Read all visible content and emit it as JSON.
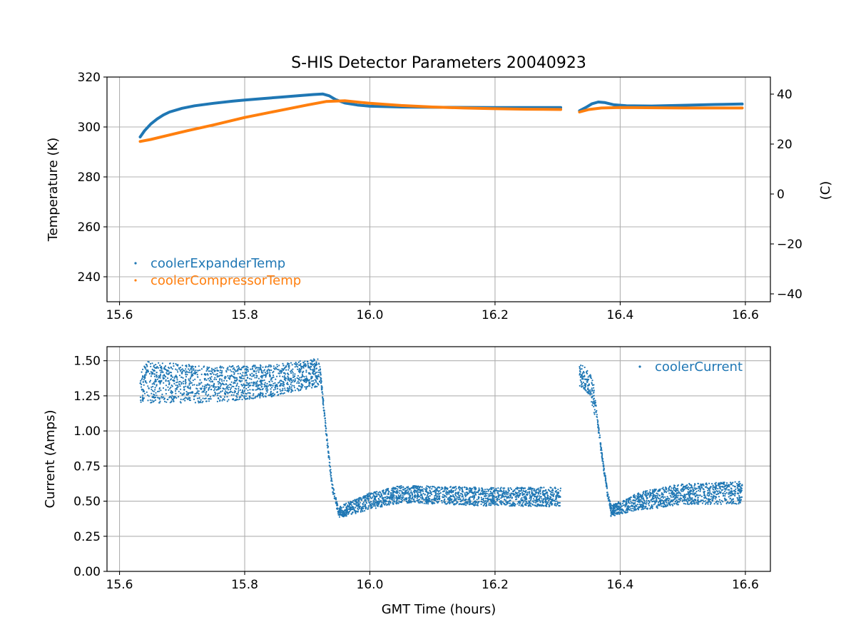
{
  "chart_data": [
    {
      "type": "scatter",
      "title": "S-HIS Detector Parameters 20040923",
      "xlabel": "",
      "ylabel": "Temperature (K)",
      "ylabel_right": "(C)",
      "xlim": [
        15.58,
        16.64
      ],
      "ylim": [
        230,
        320
      ],
      "ylim_right": [
        -43.15,
        46.85
      ],
      "x_ticks": [
        "15.6",
        "15.8",
        "16.0",
        "16.2",
        "16.4",
        "16.6"
      ],
      "y_ticks": [
        "240",
        "260",
        "280",
        "300",
        "320"
      ],
      "y_ticks_right": [
        "−40",
        "−20",
        "0",
        "20",
        "40"
      ],
      "grid": true,
      "legend_position": "lower-left",
      "series": [
        {
          "name": "coolerExpanderTemp",
          "color": "#1f77b4",
          "segments": [
            [
              [
                15.633,
                296.0
              ],
              [
                15.64,
                298.5
              ],
              [
                15.65,
                301.2
              ],
              [
                15.66,
                303.2
              ],
              [
                15.67,
                304.8
              ],
              [
                15.68,
                306.0
              ],
              [
                15.7,
                307.5
              ],
              [
                15.72,
                308.5
              ],
              [
                15.75,
                309.5
              ],
              [
                15.78,
                310.3
              ],
              [
                15.8,
                310.8
              ],
              [
                15.83,
                311.4
              ],
              [
                15.86,
                312.0
              ],
              [
                15.89,
                312.6
              ],
              [
                15.91,
                313.0
              ],
              [
                15.925,
                313.2
              ],
              [
                15.935,
                312.5
              ],
              [
                15.945,
                311.0
              ],
              [
                15.96,
                309.6
              ],
              [
                15.98,
                308.8
              ],
              [
                16.0,
                308.3
              ],
              [
                16.05,
                308.0
              ],
              [
                16.1,
                307.9
              ],
              [
                16.2,
                307.8
              ],
              [
                16.305,
                307.8
              ]
            ],
            [
              [
                16.335,
                306.5
              ],
              [
                16.345,
                307.8
              ],
              [
                16.355,
                309.3
              ],
              [
                16.365,
                310.0
              ],
              [
                16.375,
                309.8
              ],
              [
                16.39,
                308.9
              ],
              [
                16.41,
                308.5
              ],
              [
                16.45,
                308.4
              ],
              [
                16.5,
                308.7
              ],
              [
                16.55,
                309.0
              ],
              [
                16.595,
                309.2
              ]
            ]
          ]
        },
        {
          "name": "coolerCompressorTemp",
          "color": "#ff7f0e",
          "segments": [
            [
              [
                15.633,
                294.2
              ],
              [
                15.65,
                295.0
              ],
              [
                15.68,
                296.8
              ],
              [
                15.71,
                298.6
              ],
              [
                15.75,
                300.8
              ],
              [
                15.8,
                303.8
              ],
              [
                15.85,
                306.3
              ],
              [
                15.9,
                308.8
              ],
              [
                15.93,
                310.2
              ],
              [
                15.96,
                310.5
              ],
              [
                16.0,
                309.5
              ],
              [
                16.05,
                308.6
              ],
              [
                16.1,
                308.0
              ],
              [
                16.15,
                307.6
              ],
              [
                16.2,
                307.3
              ],
              [
                16.25,
                307.1
              ],
              [
                16.305,
                307.0
              ]
            ],
            [
              [
                16.335,
                306.0
              ],
              [
                16.35,
                307.0
              ],
              [
                16.37,
                307.6
              ],
              [
                16.4,
                307.8
              ],
              [
                16.5,
                307.6
              ],
              [
                16.595,
                307.6
              ]
            ]
          ]
        }
      ]
    },
    {
      "type": "scatter",
      "title": "",
      "xlabel": "GMT Time (hours)",
      "ylabel": "Current (Amps)",
      "xlim": [
        15.58,
        16.64
      ],
      "ylim": [
        0.0,
        1.6
      ],
      "x_ticks": [
        "15.6",
        "15.8",
        "16.0",
        "16.2",
        "16.4",
        "16.6"
      ],
      "y_ticks": [
        "0.00",
        "0.25",
        "0.50",
        "0.75",
        "1.00",
        "1.25",
        "1.50"
      ],
      "grid": true,
      "legend_position": "upper-right",
      "series": [
        {
          "name": "coolerCurrent",
          "color": "#1f77b4",
          "segments": [
            {
              "x_range": [
                15.633,
                15.92
              ],
              "mean": [
                [
                  15.633,
                  1.35
                ],
                [
                  15.75,
                  1.33
                ],
                [
                  15.85,
                  1.36
                ],
                [
                  15.92,
                  1.42
                ]
              ],
              "spread": [
                [
                  15.633,
                  0.15
                ],
                [
                  15.92,
                  0.1
                ]
              ]
            },
            {
              "x_range": [
                15.92,
                15.95
              ],
              "mean": [
                [
                  15.92,
                  1.45
                ],
                [
                  15.93,
                  1.0
                ],
                [
                  15.94,
                  0.6
                ],
                [
                  15.95,
                  0.42
                ]
              ],
              "spread": [
                [
                  15.92,
                  0.03
                ],
                [
                  15.95,
                  0.03
                ]
              ]
            },
            {
              "x_range": [
                15.95,
                16.305
              ],
              "mean": [
                [
                  15.95,
                  0.42
                ],
                [
                  16.0,
                  0.5
                ],
                [
                  16.05,
                  0.55
                ],
                [
                  16.2,
                  0.53
                ],
                [
                  16.305,
                  0.53
                ]
              ],
              "spread": [
                [
                  15.95,
                  0.04
                ],
                [
                  16.0,
                  0.06
                ],
                [
                  16.305,
                  0.07
                ]
              ]
            },
            {
              "x_range": [
                16.335,
                16.36
              ],
              "mean": [
                [
                  16.335,
                  1.4
                ],
                [
                  16.35,
                  1.35
                ],
                [
                  16.36,
                  1.2
                ]
              ],
              "spread": [
                [
                  16.335,
                  0.08
                ],
                [
                  16.36,
                  0.1
                ]
              ]
            },
            {
              "x_range": [
                16.36,
                16.385
              ],
              "mean": [
                [
                  16.36,
                  1.2
                ],
                [
                  16.37,
                  0.85
                ],
                [
                  16.38,
                  0.55
                ],
                [
                  16.385,
                  0.45
                ]
              ],
              "spread": [
                [
                  16.36,
                  0.03
                ],
                [
                  16.385,
                  0.03
                ]
              ]
            },
            {
              "x_range": [
                16.385,
                16.595
              ],
              "mean": [
                [
                  16.385,
                  0.43
                ],
                [
                  16.43,
                  0.5
                ],
                [
                  16.5,
                  0.55
                ],
                [
                  16.595,
                  0.56
                ]
              ],
              "spread": [
                [
                  16.385,
                  0.04
                ],
                [
                  16.45,
                  0.07
                ],
                [
                  16.595,
                  0.08
                ]
              ]
            }
          ]
        }
      ]
    }
  ]
}
